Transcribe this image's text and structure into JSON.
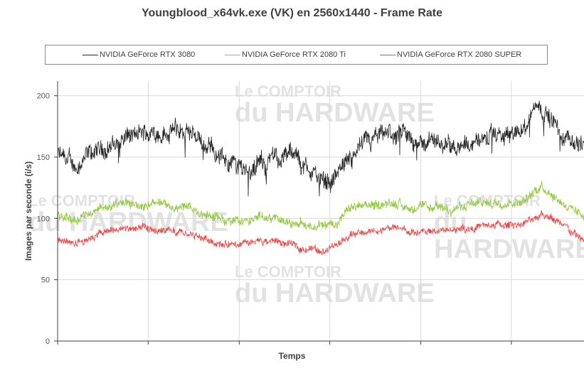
{
  "chart_data": {
    "type": "line",
    "title": "Youngblood_x64vk.exe (VK) en 2560x1440 - Frame Rate",
    "xlabel": "Temps",
    "ylabel": "Images par seconde (i/s)",
    "ylim": [
      0,
      212
    ],
    "xlim": [
      0,
      100
    ],
    "yticks": [
      0,
      50,
      100,
      150,
      200
    ],
    "x_gridlines": [
      0,
      17.2,
      34.5,
      51.7,
      69,
      86.2
    ],
    "grid": true,
    "legend_position": "top",
    "watermark": "Le COMPTOIR du HARDWARE",
    "series": [
      {
        "name": "NVIDIA GeForce RTX 3080",
        "color": "#262626",
        "noise": 10,
        "x": [
          0,
          3,
          8,
          13,
          18,
          22,
          27,
          30,
          33,
          37,
          41,
          44,
          47,
          50,
          52,
          55,
          57,
          60,
          63,
          66,
          70,
          73,
          78,
          82,
          86,
          89,
          91,
          93,
          96,
          100
        ],
        "y": [
          152,
          142,
          155,
          165,
          170,
          172,
          165,
          155,
          145,
          140,
          148,
          153,
          142,
          132,
          132,
          145,
          157,
          162,
          168,
          165,
          162,
          160,
          163,
          165,
          167,
          175,
          195,
          185,
          165,
          160
        ]
      },
      {
        "name": "NVIDIA GeForce RTX 2080 Ti",
        "color": "#92c83e",
        "noise": 5,
        "x": [
          0,
          3,
          8,
          13,
          18,
          22,
          27,
          31,
          34,
          38,
          41,
          44,
          47,
          50,
          53,
          56,
          60,
          64,
          68,
          73,
          78,
          82,
          87,
          90,
          92,
          94,
          97,
          100
        ],
        "y": [
          104,
          100,
          108,
          112,
          111,
          110,
          105,
          100,
          97,
          100,
          102,
          97,
          95,
          93,
          97,
          108,
          111,
          113,
          108,
          108,
          110,
          113,
          114,
          118,
          128,
          120,
          110,
          103
        ]
      },
      {
        "name": "NVIDIA GeForce RTX 2080 SUPER",
        "color": "#ef4444",
        "noise": 4,
        "x": [
          0,
          3,
          8,
          13,
          18,
          22,
          27,
          31,
          34,
          38,
          41,
          44,
          47,
          50,
          53,
          56,
          60,
          64,
          68,
          73,
          78,
          82,
          87,
          90,
          92,
          94,
          97,
          100
        ],
        "y": [
          83,
          80,
          88,
          92,
          90,
          88,
          85,
          80,
          77,
          80,
          82,
          78,
          76,
          74,
          78,
          87,
          90,
          92,
          88,
          90,
          92,
          94,
          95,
          98,
          105,
          100,
          90,
          82
        ]
      }
    ]
  }
}
